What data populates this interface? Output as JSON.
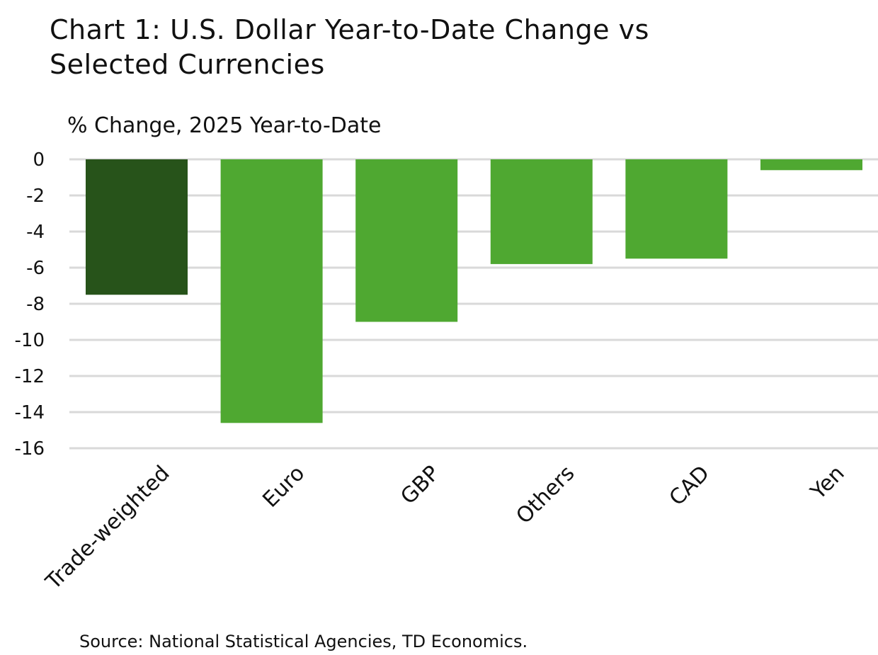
{
  "title_lines": [
    "Chart 1: U.S. Dollar Year-to-Date Change vs",
    "Selected Currencies"
  ],
  "source": "Source: National Statistical Agencies, TD Economics.",
  "colors": {
    "highlight_bar": "#27531a",
    "bar": "#4fa831",
    "grid": "#d9d9d9"
  },
  "chart_data": {
    "type": "bar",
    "title": "Chart 1: U.S. Dollar Year-to-Date Change vs Selected Currencies",
    "ylabel": "% Change, 2025 Year-to-Date",
    "xlabel": "",
    "categories": [
      "Trade-weighted",
      "Euro",
      "GBP",
      "Others",
      "CAD",
      "Yen"
    ],
    "values": [
      -7.5,
      -14.6,
      -9.0,
      -5.8,
      -5.5,
      -0.6
    ],
    "highlight_index": 0,
    "ylim": [
      -16,
      0
    ],
    "yticks": [
      0,
      -2,
      -4,
      -6,
      -8,
      -10,
      -12,
      -14,
      -16
    ],
    "grid": true,
    "legend": "none"
  }
}
